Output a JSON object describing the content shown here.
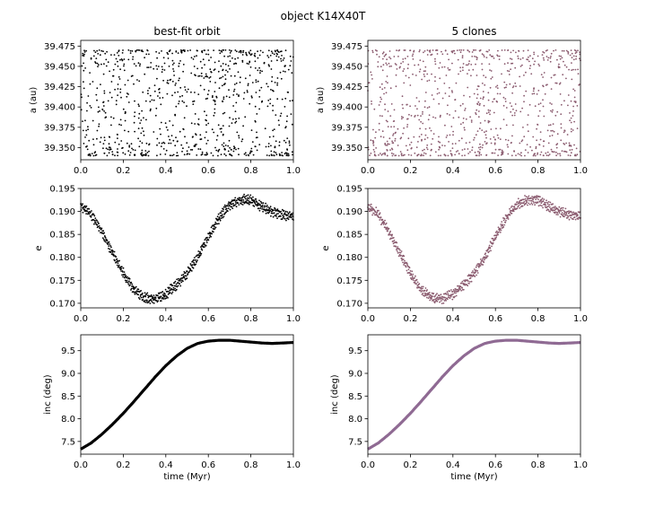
{
  "figure": {
    "title": "object K14X40T"
  },
  "chart_data": [
    {
      "id": "a-best",
      "type": "scatter",
      "title": "best-fit orbit",
      "xlabel": "",
      "ylabel": "a (au)",
      "xlim": [
        0.0,
        1.0
      ],
      "ylim": [
        39.335,
        39.482
      ],
      "xticks": [
        "0.0",
        "0.2",
        "0.4",
        "0.6",
        "0.8",
        "1.0"
      ],
      "yticks": [
        "39.350",
        "39.375",
        "39.400",
        "39.425",
        "39.450",
        "39.475"
      ],
      "pattern": "oscillating semi-major axis, uniform scatter between 39.340 and 39.470",
      "mean": 39.405,
      "amplitude": 0.065,
      "color": "#000000",
      "grid": false
    },
    {
      "id": "a-clones",
      "type": "scatter",
      "title": "5 clones",
      "xlabel": "",
      "ylabel": "a (au)",
      "xlim": [
        0.0,
        1.0
      ],
      "ylim": [
        39.335,
        39.482
      ],
      "xticks": [
        "0.0",
        "0.2",
        "0.4",
        "0.6",
        "0.8",
        "1.0"
      ],
      "yticks": [
        "39.350",
        "39.375",
        "39.400",
        "39.425",
        "39.450",
        "39.475"
      ],
      "mean": 39.405,
      "amplitude": 0.065,
      "color": "#8a5a6e",
      "grid": false
    },
    {
      "id": "e-best",
      "type": "scatter",
      "title": "",
      "xlabel": "",
      "ylabel": "e",
      "xlim": [
        0.0,
        1.0
      ],
      "ylim": [
        0.169,
        0.195
      ],
      "xticks": [
        "0.0",
        "0.2",
        "0.4",
        "0.6",
        "0.8",
        "1.0"
      ],
      "yticks": [
        "0.170",
        "0.175",
        "0.180",
        "0.185",
        "0.190",
        "0.195"
      ],
      "x": [
        0.0,
        0.05,
        0.1,
        0.15,
        0.2,
        0.25,
        0.3,
        0.35,
        0.4,
        0.45,
        0.5,
        0.55,
        0.6,
        0.65,
        0.7,
        0.75,
        0.8,
        0.85,
        0.9,
        0.95,
        1.0
      ],
      "y": [
        0.1912,
        0.1893,
        0.1855,
        0.181,
        0.1765,
        0.173,
        0.1712,
        0.171,
        0.172,
        0.174,
        0.1765,
        0.18,
        0.1845,
        0.1885,
        0.1915,
        0.1925,
        0.1925,
        0.191,
        0.19,
        0.1893,
        0.189
      ],
      "band": 0.0012,
      "color": "#000000",
      "grid": false
    },
    {
      "id": "e-clones",
      "type": "scatter",
      "title": "",
      "xlabel": "",
      "ylabel": "e",
      "xlim": [
        0.0,
        1.0
      ],
      "ylim": [
        0.169,
        0.195
      ],
      "xticks": [
        "0.0",
        "0.2",
        "0.4",
        "0.6",
        "0.8",
        "1.0"
      ],
      "yticks": [
        "0.170",
        "0.175",
        "0.180",
        "0.185",
        "0.190",
        "0.195"
      ],
      "x": [
        0.0,
        0.05,
        0.1,
        0.15,
        0.2,
        0.25,
        0.3,
        0.35,
        0.4,
        0.45,
        0.5,
        0.55,
        0.6,
        0.65,
        0.7,
        0.75,
        0.8,
        0.85,
        0.9,
        0.95,
        1.0
      ],
      "y": [
        0.1912,
        0.1893,
        0.1855,
        0.181,
        0.1765,
        0.173,
        0.1712,
        0.171,
        0.172,
        0.174,
        0.1765,
        0.18,
        0.1845,
        0.1885,
        0.1915,
        0.1925,
        0.1925,
        0.191,
        0.19,
        0.1893,
        0.189
      ],
      "band": 0.0012,
      "color": "#8a5a6e",
      "grid": false
    },
    {
      "id": "inc-best",
      "type": "line",
      "title": "",
      "xlabel": "time (Myr)",
      "ylabel": "inc (deg)",
      "xlim": [
        0.0,
        1.0
      ],
      "ylim": [
        7.22,
        9.85
      ],
      "xticks": [
        "0.0",
        "0.2",
        "0.4",
        "0.6",
        "0.8",
        "1.0"
      ],
      "yticks": [
        "7.5",
        "8.0",
        "8.5",
        "9.0",
        "9.5"
      ],
      "x": [
        0.0,
        0.05,
        0.1,
        0.15,
        0.2,
        0.25,
        0.3,
        0.35,
        0.4,
        0.45,
        0.5,
        0.55,
        0.6,
        0.65,
        0.7,
        0.75,
        0.8,
        0.85,
        0.9,
        0.95,
        1.0
      ],
      "y": [
        7.33,
        7.47,
        7.66,
        7.88,
        8.12,
        8.38,
        8.65,
        8.92,
        9.17,
        9.38,
        9.55,
        9.66,
        9.71,
        9.73,
        9.73,
        9.71,
        9.69,
        9.67,
        9.66,
        9.67,
        9.68
      ],
      "color": "#000000",
      "grid": false
    },
    {
      "id": "inc-clones",
      "type": "line",
      "title": "",
      "xlabel": "time (Myr)",
      "ylabel": "inc (deg)",
      "xlim": [
        0.0,
        1.0
      ],
      "ylim": [
        7.22,
        9.85
      ],
      "xticks": [
        "0.0",
        "0.2",
        "0.4",
        "0.6",
        "0.8",
        "1.0"
      ],
      "yticks": [
        "7.5",
        "8.0",
        "8.5",
        "9.0",
        "9.5"
      ],
      "x": [
        0.0,
        0.05,
        0.1,
        0.15,
        0.2,
        0.25,
        0.3,
        0.35,
        0.4,
        0.45,
        0.5,
        0.55,
        0.6,
        0.65,
        0.7,
        0.75,
        0.8,
        0.85,
        0.9,
        0.95,
        1.0
      ],
      "y": [
        7.33,
        7.47,
        7.66,
        7.88,
        8.12,
        8.38,
        8.65,
        8.92,
        9.17,
        9.38,
        9.55,
        9.66,
        9.71,
        9.73,
        9.73,
        9.71,
        9.69,
        9.67,
        9.66,
        9.67,
        9.68
      ],
      "color": "#8f6a93",
      "grid": false
    }
  ]
}
